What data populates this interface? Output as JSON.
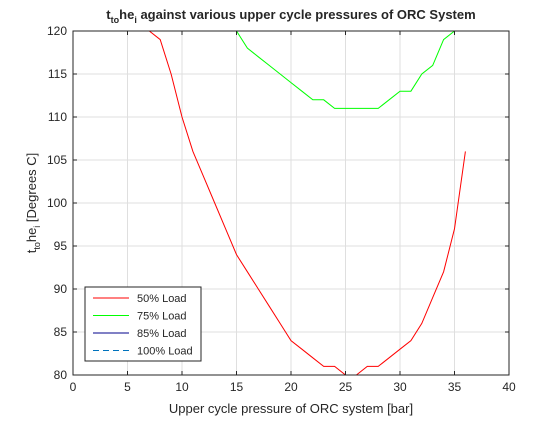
{
  "chart_data": {
    "type": "line",
    "title_parts": {
      "t": "t",
      "sub1": "to",
      "he": "he",
      "sub2": "i",
      "rest": " against various upper cycle pressures of ORC System"
    },
    "xlabel": "Upper cycle pressure of ORC system [bar]",
    "ylabel_parts": {
      "t": "t",
      "sub1": "to",
      "he": "he",
      "sub2": "i",
      "rest": " [Degrees C]"
    },
    "xlim": [
      0,
      40
    ],
    "ylim": [
      80,
      120
    ],
    "xticks": [
      0,
      5,
      10,
      15,
      20,
      25,
      30,
      35,
      40
    ],
    "yticks": [
      80,
      85,
      90,
      95,
      100,
      105,
      110,
      115,
      120
    ],
    "grid": true,
    "legend_position": "bottom-left",
    "series": [
      {
        "name": "50% Load",
        "color": "#ff0000",
        "style": "solid",
        "x": [
          4,
          7,
          8,
          9,
          10,
          11,
          12,
          13,
          14,
          15,
          16,
          17,
          18,
          19,
          20,
          21,
          22,
          23,
          24,
          25,
          26,
          27,
          28,
          29,
          30,
          31,
          32,
          33,
          34,
          35,
          36
        ],
        "y": [
          120,
          120,
          119,
          115,
          110,
          106,
          103,
          100,
          97,
          94,
          92,
          90,
          88,
          86,
          84,
          83,
          82,
          81,
          81,
          80,
          80,
          81,
          81,
          82,
          83,
          84,
          86,
          89,
          92,
          97,
          106
        ]
      },
      {
        "name": "75% Load",
        "color": "#00ff00",
        "style": "solid",
        "x": [
          4,
          15,
          16,
          17,
          18,
          19,
          20,
          21,
          22,
          23,
          24,
          25,
          26,
          27,
          28,
          29,
          30,
          31,
          32,
          33,
          34,
          35,
          36
        ],
        "y": [
          120,
          120,
          118,
          117,
          116,
          115,
          114,
          113,
          112,
          112,
          111,
          111,
          111,
          111,
          111,
          112,
          113,
          113,
          115,
          116,
          119,
          120,
          120
        ]
      },
      {
        "name": "85% Load",
        "color": "#00008b",
        "style": "solid",
        "x": [
          4,
          36
        ],
        "y": [
          120,
          120
        ]
      },
      {
        "name": "100% Load",
        "color": "#0072bd",
        "style": "dashed",
        "x": [
          4,
          36
        ],
        "y": [
          120,
          120
        ]
      }
    ]
  }
}
